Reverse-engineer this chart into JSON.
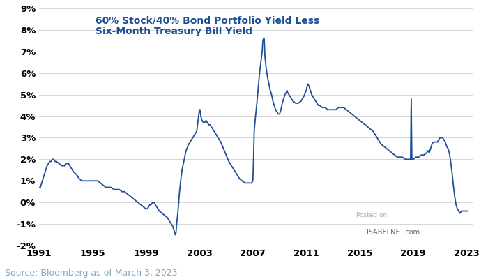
{
  "title_line1": "60% Stock/40% Bond Portfolio Yield Less",
  "title_line2": "Six-Month Treasury Bill Yield",
  "title_color": "#1F4E96",
  "line_color": "#1F4E96",
  "background_color": "#ffffff",
  "source_text": "Source: Bloomberg as of March 3, 2023",
  "source_color": "#7BA7C7",
  "xlim": [
    1991,
    2023.5
  ],
  "ylim": [
    -0.02,
    0.09
  ],
  "yticks": [
    -0.02,
    -0.01,
    0.0,
    0.01,
    0.02,
    0.03,
    0.04,
    0.05,
    0.06,
    0.07,
    0.08,
    0.09
  ],
  "xticks": [
    1991,
    1995,
    1999,
    2003,
    2007,
    2011,
    2015,
    2019,
    2023
  ],
  "series": [
    [
      1991.0,
      0.007
    ],
    [
      1991.1,
      0.007
    ],
    [
      1991.2,
      0.009
    ],
    [
      1991.3,
      0.011
    ],
    [
      1991.4,
      0.013
    ],
    [
      1991.5,
      0.015
    ],
    [
      1991.6,
      0.017
    ],
    [
      1991.7,
      0.018
    ],
    [
      1991.8,
      0.019
    ],
    [
      1991.9,
      0.019
    ],
    [
      1992.0,
      0.02
    ],
    [
      1992.1,
      0.02
    ],
    [
      1992.2,
      0.019
    ],
    [
      1992.3,
      0.019
    ],
    [
      1992.5,
      0.018
    ],
    [
      1992.7,
      0.017
    ],
    [
      1992.9,
      0.017
    ],
    [
      1993.0,
      0.018
    ],
    [
      1993.2,
      0.018
    ],
    [
      1993.4,
      0.016
    ],
    [
      1993.6,
      0.014
    ],
    [
      1993.8,
      0.013
    ],
    [
      1994.0,
      0.011
    ],
    [
      1994.2,
      0.01
    ],
    [
      1994.4,
      0.01
    ],
    [
      1994.6,
      0.01
    ],
    [
      1994.8,
      0.01
    ],
    [
      1995.0,
      0.01
    ],
    [
      1995.2,
      0.01
    ],
    [
      1995.4,
      0.01
    ],
    [
      1995.6,
      0.009
    ],
    [
      1995.8,
      0.008
    ],
    [
      1996.0,
      0.007
    ],
    [
      1996.2,
      0.007
    ],
    [
      1996.4,
      0.007
    ],
    [
      1996.6,
      0.006
    ],
    [
      1996.8,
      0.006
    ],
    [
      1997.0,
      0.006
    ],
    [
      1997.2,
      0.005
    ],
    [
      1997.4,
      0.005
    ],
    [
      1997.6,
      0.004
    ],
    [
      1997.8,
      0.003
    ],
    [
      1998.0,
      0.002
    ],
    [
      1998.2,
      0.001
    ],
    [
      1998.4,
      0.0
    ],
    [
      1998.6,
      -0.001
    ],
    [
      1998.8,
      -0.002
    ],
    [
      1999.0,
      -0.003
    ],
    [
      1999.1,
      -0.003
    ],
    [
      1999.2,
      -0.002
    ],
    [
      1999.3,
      -0.001
    ],
    [
      1999.4,
      -0.001
    ],
    [
      1999.5,
      0.0
    ],
    [
      1999.6,
      0.0
    ],
    [
      1999.7,
      -0.001
    ],
    [
      1999.8,
      -0.002
    ],
    [
      1999.9,
      -0.003
    ],
    [
      2000.0,
      -0.004
    ],
    [
      2000.2,
      -0.005
    ],
    [
      2000.4,
      -0.006
    ],
    [
      2000.6,
      -0.007
    ],
    [
      2000.8,
      -0.009
    ],
    [
      2001.0,
      -0.011
    ],
    [
      2001.1,
      -0.013
    ],
    [
      2001.15,
      -0.014
    ],
    [
      2001.2,
      -0.015
    ],
    [
      2001.25,
      -0.014
    ],
    [
      2001.3,
      -0.01
    ],
    [
      2001.4,
      -0.004
    ],
    [
      2001.5,
      0.004
    ],
    [
      2001.6,
      0.01
    ],
    [
      2001.7,
      0.015
    ],
    [
      2001.8,
      0.018
    ],
    [
      2001.9,
      0.021
    ],
    [
      2002.0,
      0.024
    ],
    [
      2002.2,
      0.027
    ],
    [
      2002.4,
      0.029
    ],
    [
      2002.6,
      0.031
    ],
    [
      2002.8,
      0.033
    ],
    [
      2002.9,
      0.038
    ],
    [
      2003.0,
      0.043
    ],
    [
      2003.05,
      0.043
    ],
    [
      2003.1,
      0.04
    ],
    [
      2003.2,
      0.038
    ],
    [
      2003.3,
      0.037
    ],
    [
      2003.4,
      0.037
    ],
    [
      2003.5,
      0.038
    ],
    [
      2003.6,
      0.037
    ],
    [
      2003.7,
      0.036
    ],
    [
      2003.8,
      0.036
    ],
    [
      2003.9,
      0.035
    ],
    [
      2004.0,
      0.034
    ],
    [
      2004.2,
      0.032
    ],
    [
      2004.4,
      0.03
    ],
    [
      2004.6,
      0.028
    ],
    [
      2004.8,
      0.025
    ],
    [
      2005.0,
      0.022
    ],
    [
      2005.2,
      0.019
    ],
    [
      2005.4,
      0.017
    ],
    [
      2005.6,
      0.015
    ],
    [
      2005.8,
      0.013
    ],
    [
      2006.0,
      0.011
    ],
    [
      2006.2,
      0.01
    ],
    [
      2006.4,
      0.009
    ],
    [
      2006.6,
      0.009
    ],
    [
      2006.8,
      0.009
    ],
    [
      2006.9,
      0.009
    ],
    [
      2007.0,
      0.01
    ],
    [
      2007.05,
      0.02
    ],
    [
      2007.1,
      0.033
    ],
    [
      2007.2,
      0.04
    ],
    [
      2007.3,
      0.046
    ],
    [
      2007.4,
      0.053
    ],
    [
      2007.5,
      0.06
    ],
    [
      2007.6,
      0.065
    ],
    [
      2007.7,
      0.07
    ],
    [
      2007.75,
      0.075
    ],
    [
      2007.8,
      0.076
    ],
    [
      2007.85,
      0.076
    ],
    [
      2007.9,
      0.068
    ],
    [
      2008.0,
      0.062
    ],
    [
      2008.1,
      0.058
    ],
    [
      2008.2,
      0.055
    ],
    [
      2008.3,
      0.052
    ],
    [
      2008.4,
      0.05
    ],
    [
      2008.5,
      0.047
    ],
    [
      2008.6,
      0.045
    ],
    [
      2008.7,
      0.043
    ],
    [
      2008.8,
      0.042
    ],
    [
      2008.9,
      0.041
    ],
    [
      2009.0,
      0.041
    ],
    [
      2009.1,
      0.043
    ],
    [
      2009.2,
      0.046
    ],
    [
      2009.3,
      0.048
    ],
    [
      2009.4,
      0.05
    ],
    [
      2009.5,
      0.051
    ],
    [
      2009.55,
      0.052
    ],
    [
      2009.6,
      0.051
    ],
    [
      2009.7,
      0.05
    ],
    [
      2009.8,
      0.049
    ],
    [
      2009.9,
      0.048
    ],
    [
      2010.0,
      0.047
    ],
    [
      2010.2,
      0.046
    ],
    [
      2010.4,
      0.046
    ],
    [
      2010.6,
      0.047
    ],
    [
      2010.8,
      0.049
    ],
    [
      2011.0,
      0.052
    ],
    [
      2011.1,
      0.055
    ],
    [
      2011.2,
      0.054
    ],
    [
      2011.3,
      0.052
    ],
    [
      2011.4,
      0.05
    ],
    [
      2011.5,
      0.049
    ],
    [
      2011.6,
      0.048
    ],
    [
      2011.7,
      0.047
    ],
    [
      2011.8,
      0.046
    ],
    [
      2011.9,
      0.045
    ],
    [
      2012.0,
      0.045
    ],
    [
      2012.2,
      0.044
    ],
    [
      2012.4,
      0.044
    ],
    [
      2012.6,
      0.043
    ],
    [
      2012.8,
      0.043
    ],
    [
      2013.0,
      0.043
    ],
    [
      2013.2,
      0.043
    ],
    [
      2013.4,
      0.044
    ],
    [
      2013.6,
      0.044
    ],
    [
      2013.8,
      0.044
    ],
    [
      2014.0,
      0.043
    ],
    [
      2014.2,
      0.042
    ],
    [
      2014.4,
      0.041
    ],
    [
      2014.6,
      0.04
    ],
    [
      2014.8,
      0.039
    ],
    [
      2015.0,
      0.038
    ],
    [
      2015.2,
      0.037
    ],
    [
      2015.4,
      0.036
    ],
    [
      2015.6,
      0.035
    ],
    [
      2015.8,
      0.034
    ],
    [
      2016.0,
      0.033
    ],
    [
      2016.2,
      0.031
    ],
    [
      2016.4,
      0.029
    ],
    [
      2016.6,
      0.027
    ],
    [
      2016.8,
      0.026
    ],
    [
      2017.0,
      0.025
    ],
    [
      2017.2,
      0.024
    ],
    [
      2017.4,
      0.023
    ],
    [
      2017.6,
      0.022
    ],
    [
      2017.8,
      0.021
    ],
    [
      2018.0,
      0.021
    ],
    [
      2018.2,
      0.021
    ],
    [
      2018.4,
      0.02
    ],
    [
      2018.6,
      0.02
    ],
    [
      2018.8,
      0.02
    ],
    [
      2018.85,
      0.048
    ],
    [
      2018.9,
      0.02
    ],
    [
      2019.0,
      0.02
    ],
    [
      2019.2,
      0.021
    ],
    [
      2019.4,
      0.021
    ],
    [
      2019.6,
      0.022
    ],
    [
      2019.8,
      0.022
    ],
    [
      2020.0,
      0.023
    ],
    [
      2020.1,
      0.024
    ],
    [
      2020.2,
      0.023
    ],
    [
      2020.3,
      0.025
    ],
    [
      2020.4,
      0.027
    ],
    [
      2020.5,
      0.028
    ],
    [
      2020.6,
      0.028
    ],
    [
      2020.7,
      0.028
    ],
    [
      2020.8,
      0.028
    ],
    [
      2020.9,
      0.029
    ],
    [
      2021.0,
      0.03
    ],
    [
      2021.1,
      0.03
    ],
    [
      2021.2,
      0.03
    ],
    [
      2021.3,
      0.029
    ],
    [
      2021.4,
      0.028
    ],
    [
      2021.5,
      0.026
    ],
    [
      2021.6,
      0.025
    ],
    [
      2021.7,
      0.023
    ],
    [
      2021.8,
      0.019
    ],
    [
      2021.9,
      0.014
    ],
    [
      2022.0,
      0.008
    ],
    [
      2022.1,
      0.003
    ],
    [
      2022.2,
      -0.001
    ],
    [
      2022.3,
      -0.003
    ],
    [
      2022.4,
      -0.004
    ],
    [
      2022.5,
      -0.005
    ],
    [
      2022.6,
      -0.004
    ],
    [
      2022.7,
      -0.004
    ],
    [
      2022.8,
      -0.004
    ],
    [
      2022.9,
      -0.004
    ],
    [
      2023.0,
      -0.004
    ],
    [
      2023.1,
      -0.004
    ]
  ]
}
